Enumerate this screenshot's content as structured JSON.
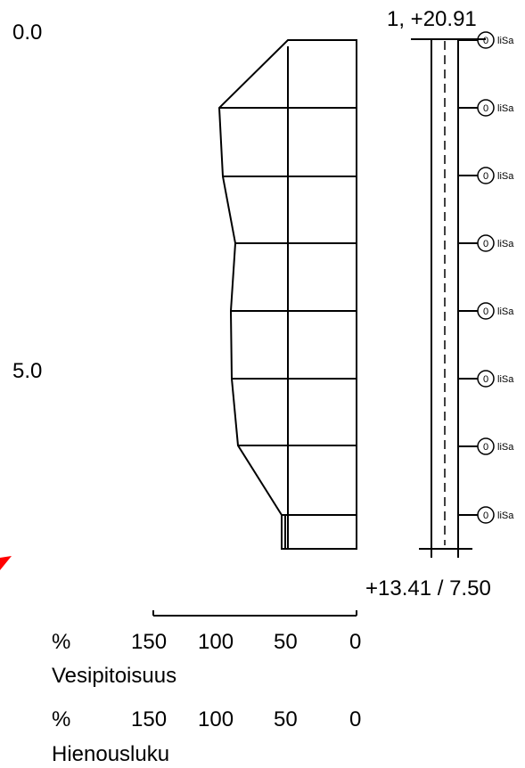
{
  "depth_axis": {
    "top_label": "0.0",
    "mid_label": "5.0"
  },
  "borehole": {
    "header": "1, +20.91",
    "footer": "+13.41 / 7.50",
    "samples": [
      {
        "number": "0",
        "label": "liSa"
      },
      {
        "number": "0",
        "label": "liSa"
      },
      {
        "number": "0",
        "label": "liSa"
      },
      {
        "number": "0",
        "label": "liSa"
      },
      {
        "number": "0",
        "label": "liSa"
      },
      {
        "number": "0",
        "label": "liSa"
      },
      {
        "number": "0",
        "label": "liSa"
      },
      {
        "number": "0",
        "label": "liSa"
      }
    ]
  },
  "scales": {
    "water_content": {
      "unit": "%",
      "ticks": [
        "150",
        "100",
        "50",
        "0"
      ],
      "title": "Vesipitoisuus"
    },
    "fines": {
      "unit": "%",
      "ticks": [
        "150",
        "100",
        "50",
        "0"
      ],
      "title": "Hienousluku"
    }
  },
  "colors": {
    "line": "#000000",
    "marker": "#ff0000"
  }
}
